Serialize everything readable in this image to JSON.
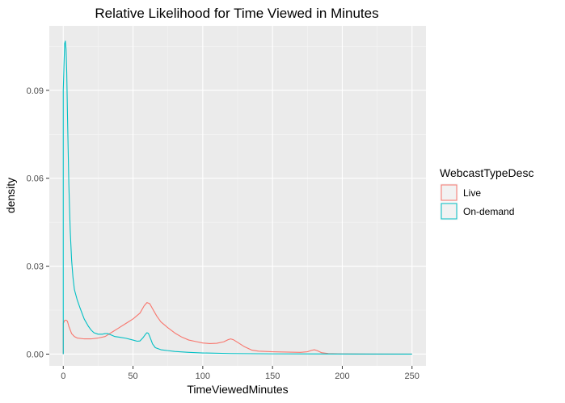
{
  "chart_data": {
    "type": "line",
    "title": "Relative Likelihood for Time Viewed in Minutes",
    "xlabel": "TimeViewedMinutes",
    "ylabel": "density",
    "xlim": [
      -10,
      260
    ],
    "ylim": [
      -0.004,
      0.112
    ],
    "x_ticks": [
      0,
      50,
      100,
      150,
      200,
      250
    ],
    "y_ticks": [
      0.0,
      0.03,
      0.06,
      0.09
    ],
    "y_tick_labels": [
      "0.00",
      "0.03",
      "0.06",
      "0.09"
    ],
    "grid": true,
    "background": "#ebebeb",
    "legend": {
      "title": "WebcastTypeDesc",
      "position": "right"
    },
    "series": [
      {
        "name": "Live",
        "color": "#f8766d",
        "points": [
          [
            0,
            0.0
          ],
          [
            0,
            0.0105
          ],
          [
            1,
            0.0115
          ],
          [
            2,
            0.0116
          ],
          [
            3,
            0.0112
          ],
          [
            4,
            0.0095
          ],
          [
            6,
            0.007
          ],
          [
            8,
            0.006
          ],
          [
            10,
            0.0055
          ],
          [
            15,
            0.0052
          ],
          [
            20,
            0.0052
          ],
          [
            25,
            0.0055
          ],
          [
            30,
            0.006
          ],
          [
            35,
            0.0075
          ],
          [
            40,
            0.009
          ],
          [
            45,
            0.0105
          ],
          [
            50,
            0.012
          ],
          [
            55,
            0.014
          ],
          [
            58,
            0.0165
          ],
          [
            60,
            0.0176
          ],
          [
            62,
            0.0172
          ],
          [
            64,
            0.0155
          ],
          [
            67,
            0.013
          ],
          [
            70,
            0.011
          ],
          [
            75,
            0.009
          ],
          [
            80,
            0.0072
          ],
          [
            85,
            0.0058
          ],
          [
            90,
            0.0048
          ],
          [
            95,
            0.0043
          ],
          [
            100,
            0.0038
          ],
          [
            105,
            0.0036
          ],
          [
            110,
            0.0037
          ],
          [
            115,
            0.0042
          ],
          [
            118,
            0.0049
          ],
          [
            120,
            0.0052
          ],
          [
            122,
            0.0049
          ],
          [
            125,
            0.004
          ],
          [
            130,
            0.0025
          ],
          [
            135,
            0.0014
          ],
          [
            140,
            0.001
          ],
          [
            150,
            0.0008
          ],
          [
            160,
            0.0007
          ],
          [
            170,
            0.0006
          ],
          [
            175,
            0.0008
          ],
          [
            178,
            0.0013
          ],
          [
            180,
            0.0015
          ],
          [
            182,
            0.0012
          ],
          [
            185,
            0.0005
          ],
          [
            190,
            0.0002
          ],
          [
            200,
            0.0001
          ],
          [
            210,
            5e-05
          ],
          [
            220,
            0.0
          ],
          [
            250,
            0.0
          ]
        ]
      },
      {
        "name": "On-demand",
        "color": "#00bfc4",
        "points": [
          [
            0,
            0.0
          ],
          [
            0,
            0.09
          ],
          [
            0.5,
            0.098
          ],
          [
            1,
            0.106
          ],
          [
            1.5,
            0.1068
          ],
          [
            2,
            0.104
          ],
          [
            2.5,
            0.096
          ],
          [
            3,
            0.082
          ],
          [
            4,
            0.058
          ],
          [
            5,
            0.042
          ],
          [
            6,
            0.032
          ],
          [
            7,
            0.026
          ],
          [
            8,
            0.022
          ],
          [
            10,
            0.0185
          ],
          [
            12,
            0.0158
          ],
          [
            15,
            0.012
          ],
          [
            18,
            0.0095
          ],
          [
            20,
            0.0082
          ],
          [
            22,
            0.0073
          ],
          [
            25,
            0.0068
          ],
          [
            28,
            0.0068
          ],
          [
            30,
            0.007
          ],
          [
            32,
            0.007
          ],
          [
            35,
            0.0064
          ],
          [
            37,
            0.006
          ],
          [
            40,
            0.0058
          ],
          [
            45,
            0.0054
          ],
          [
            50,
            0.0048
          ],
          [
            53,
            0.0044
          ],
          [
            55,
            0.0045
          ],
          [
            57,
            0.0055
          ],
          [
            59,
            0.0068
          ],
          [
            60,
            0.0073
          ],
          [
            61,
            0.0071
          ],
          [
            62,
            0.006
          ],
          [
            64,
            0.0035
          ],
          [
            66,
            0.0022
          ],
          [
            70,
            0.0015
          ],
          [
            75,
            0.0012
          ],
          [
            80,
            0.0009
          ],
          [
            90,
            0.0006
          ],
          [
            100,
            0.0004
          ],
          [
            120,
            0.0002
          ],
          [
            150,
            0.0001
          ],
          [
            200,
            5e-05
          ],
          [
            250,
            2e-05
          ]
        ]
      }
    ]
  }
}
